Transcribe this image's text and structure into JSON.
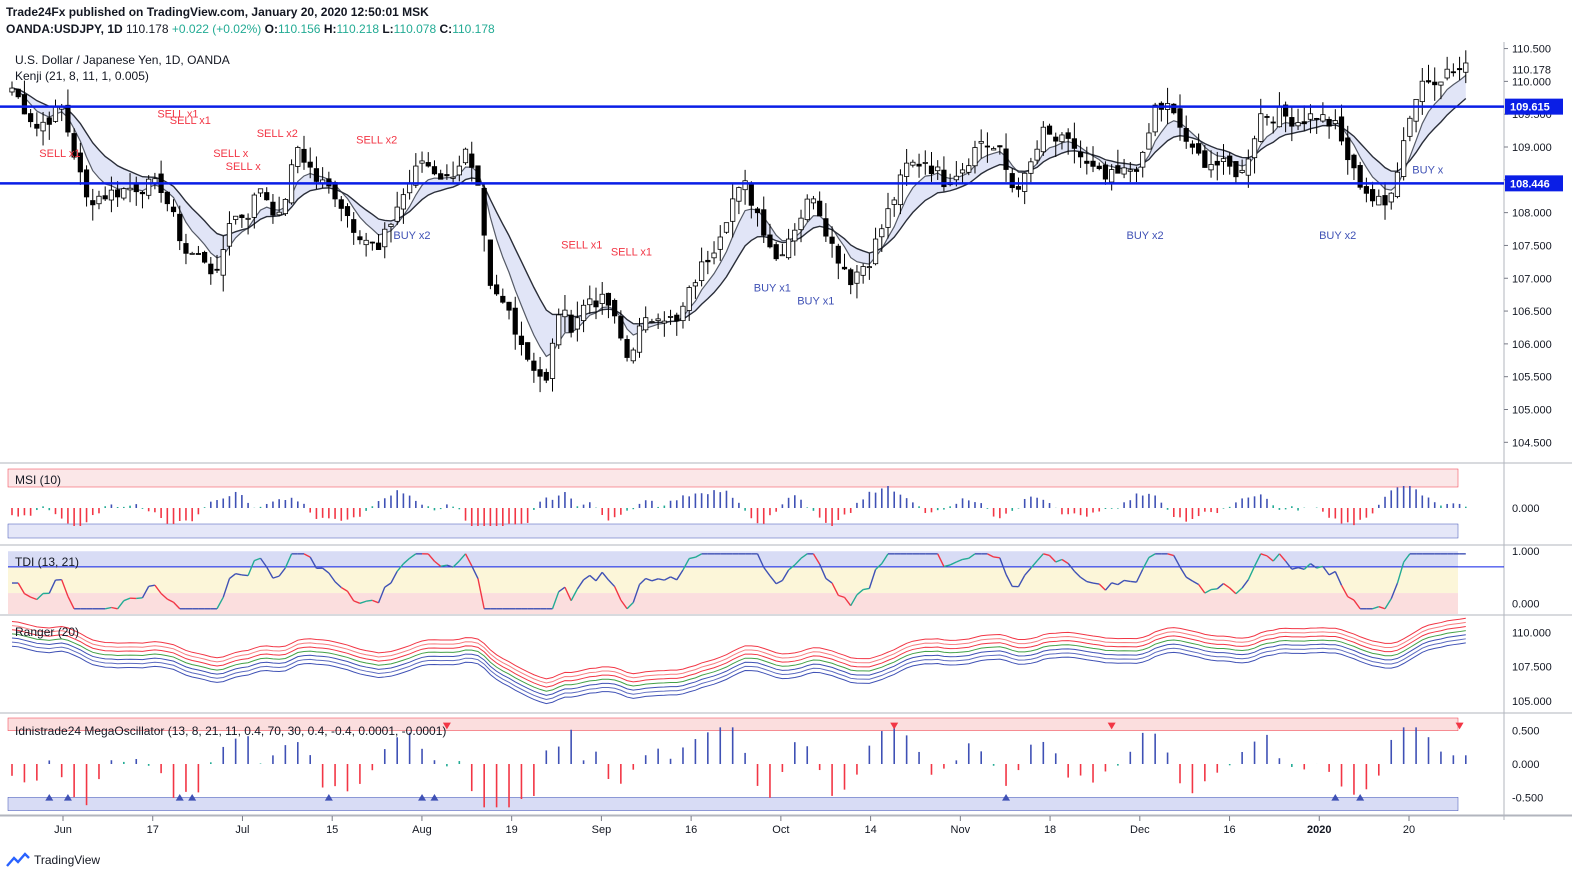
{
  "header": {
    "publisher": "Trade24Fx published on TradingView.com, January 20, 2020 12:50:01 MSK",
    "symbol": "OANDA:USDJPY, 1D",
    "last": "110.178",
    "change": "+0.022 (+0.02%)",
    "o_label": "O:",
    "o": "110.156",
    "h_label": "H:",
    "h": "110.218",
    "l_label": "L:",
    "l": "110.078",
    "c_label": "C:",
    "c": "110.178"
  },
  "footer": {
    "brand": "TradingView"
  },
  "colors": {
    "up": "#ffffff",
    "down": "#000000",
    "hline": "#0a1ee6",
    "sell": "#f23645",
    "buy": "#3f51b5"
  },
  "chart_data": [
    {
      "type": "candlestick",
      "title": "U.S. Dollar / Japanese Yen, 1D, OANDA",
      "indicator": "Kenji (21, 8, 11, 1, 0.005)",
      "ylim": [
        104.2,
        110.6
      ],
      "y_ticks": [
        "110.500",
        "110.000",
        "109.500",
        "109.000",
        "108.500",
        "108.000",
        "107.500",
        "107.000",
        "106.500",
        "106.000",
        "105.500",
        "105.000",
        "104.500"
      ],
      "x_ticks": [
        "Jun",
        "17",
        "Jul",
        "15",
        "Aug",
        "19",
        "Sep",
        "16",
        "Oct",
        "14",
        "Nov",
        "18",
        "Dec",
        "16",
        "2020",
        "20"
      ],
      "horizontal_lines": [
        {
          "value": 109.615,
          "label": "109.615"
        },
        {
          "value": 108.446,
          "label": "108.446"
        }
      ],
      "last_price_label": "110.178",
      "close_path": [
        [
          0,
          109.9
        ],
        [
          4,
          109.3
        ],
        [
          8,
          109.6
        ],
        [
          12,
          108.2
        ],
        [
          16,
          108.3
        ],
        [
          20,
          108.4
        ],
        [
          24,
          108.4
        ],
        [
          28,
          107.4
        ],
        [
          31,
          107.3
        ],
        [
          33,
          107.0
        ],
        [
          35,
          107.9
        ],
        [
          38,
          108.0
        ],
        [
          40,
          108.4
        ],
        [
          43,
          107.9
        ],
        [
          46,
          109.0
        ],
        [
          49,
          108.5
        ],
        [
          52,
          108.3
        ],
        [
          55,
          107.8
        ],
        [
          59,
          107.4
        ],
        [
          62,
          108.1
        ],
        [
          66,
          108.8
        ],
        [
          70,
          108.5
        ],
        [
          73,
          108.9
        ],
        [
          75,
          108.3
        ],
        [
          77,
          106.8
        ],
        [
          80,
          106.5
        ],
        [
          83,
          105.8
        ],
        [
          86,
          105.4
        ],
        [
          88,
          106.5
        ],
        [
          90,
          106.3
        ],
        [
          93,
          106.7
        ],
        [
          96,
          106.6
        ],
        [
          99,
          105.8
        ],
        [
          101,
          106.2
        ],
        [
          104,
          106.5
        ],
        [
          107,
          106.3
        ],
        [
          110,
          107.0
        ],
        [
          113,
          107.5
        ],
        [
          116,
          108.2
        ],
        [
          118,
          108.4
        ],
        [
          120,
          108.0
        ],
        [
          123,
          107.3
        ],
        [
          126,
          107.8
        ],
        [
          129,
          108.3
        ],
        [
          132,
          107.5
        ],
        [
          135,
          107.0
        ],
        [
          138,
          107.3
        ],
        [
          141,
          108.0
        ],
        [
          144,
          108.7
        ],
        [
          147,
          108.8
        ],
        [
          150,
          108.5
        ],
        [
          153,
          108.7
        ],
        [
          156,
          109.1
        ],
        [
          159,
          108.9
        ],
        [
          161,
          108.4
        ],
        [
          163,
          108.5
        ],
        [
          166,
          109.2
        ],
        [
          168,
          109.1
        ],
        [
          171,
          109.0
        ],
        [
          173,
          108.7
        ],
        [
          176,
          108.5
        ],
        [
          179,
          108.6
        ],
        [
          182,
          108.8
        ],
        [
          184,
          109.6
        ],
        [
          186,
          109.6
        ],
        [
          188,
          109.3
        ],
        [
          190,
          108.9
        ],
        [
          192,
          108.8
        ],
        [
          195,
          108.7
        ],
        [
          198,
          108.6
        ],
        [
          201,
          109.5
        ],
        [
          204,
          109.5
        ],
        [
          207,
          109.4
        ],
        [
          210,
          109.5
        ],
        [
          213,
          109.3
        ],
        [
          216,
          108.6
        ],
        [
          219,
          108.2
        ],
        [
          221,
          108.1
        ],
        [
          223,
          108.7
        ],
        [
          225,
          109.5
        ],
        [
          227,
          110.0
        ],
        [
          230,
          110.1
        ],
        [
          232,
          110.15
        ],
        [
          234,
          110.18
        ]
      ],
      "annotations": [
        "SELL x1",
        "SELL x1",
        "SELL x1",
        "SELL x2",
        "SELL x2",
        "SELL x",
        "SELL x",
        "SELL x1",
        "SELL x1",
        "BUY x2",
        "BUY x1",
        "BUY x1",
        "BUY x2",
        "BUY x2",
        "BUY x"
      ]
    },
    {
      "type": "bar",
      "title": "MSI (10)",
      "y_ticks": [
        "0.000"
      ],
      "ylim": [
        -1,
        1
      ]
    },
    {
      "type": "line",
      "title": "TDI (13, 21)",
      "y_ticks": [
        "1.000",
        "0.000"
      ],
      "ylim": [
        -0.2,
        1.1
      ]
    },
    {
      "type": "line",
      "title": "Ranger (20)",
      "y_ticks": [
        "110.000",
        "107.500",
        "105.000"
      ],
      "ylim": [
        104.2,
        111.2
      ]
    },
    {
      "type": "bar",
      "title": "Idnistrade24 MegaOscillator (13, 8, 21, 11, 0.4, 70, 30, 0.4, -0.4, 0.0001, -0.0001)",
      "y_ticks": [
        "0.500",
        "0.000",
        "-0.500"
      ],
      "ylim": [
        -0.75,
        0.75
      ]
    }
  ]
}
